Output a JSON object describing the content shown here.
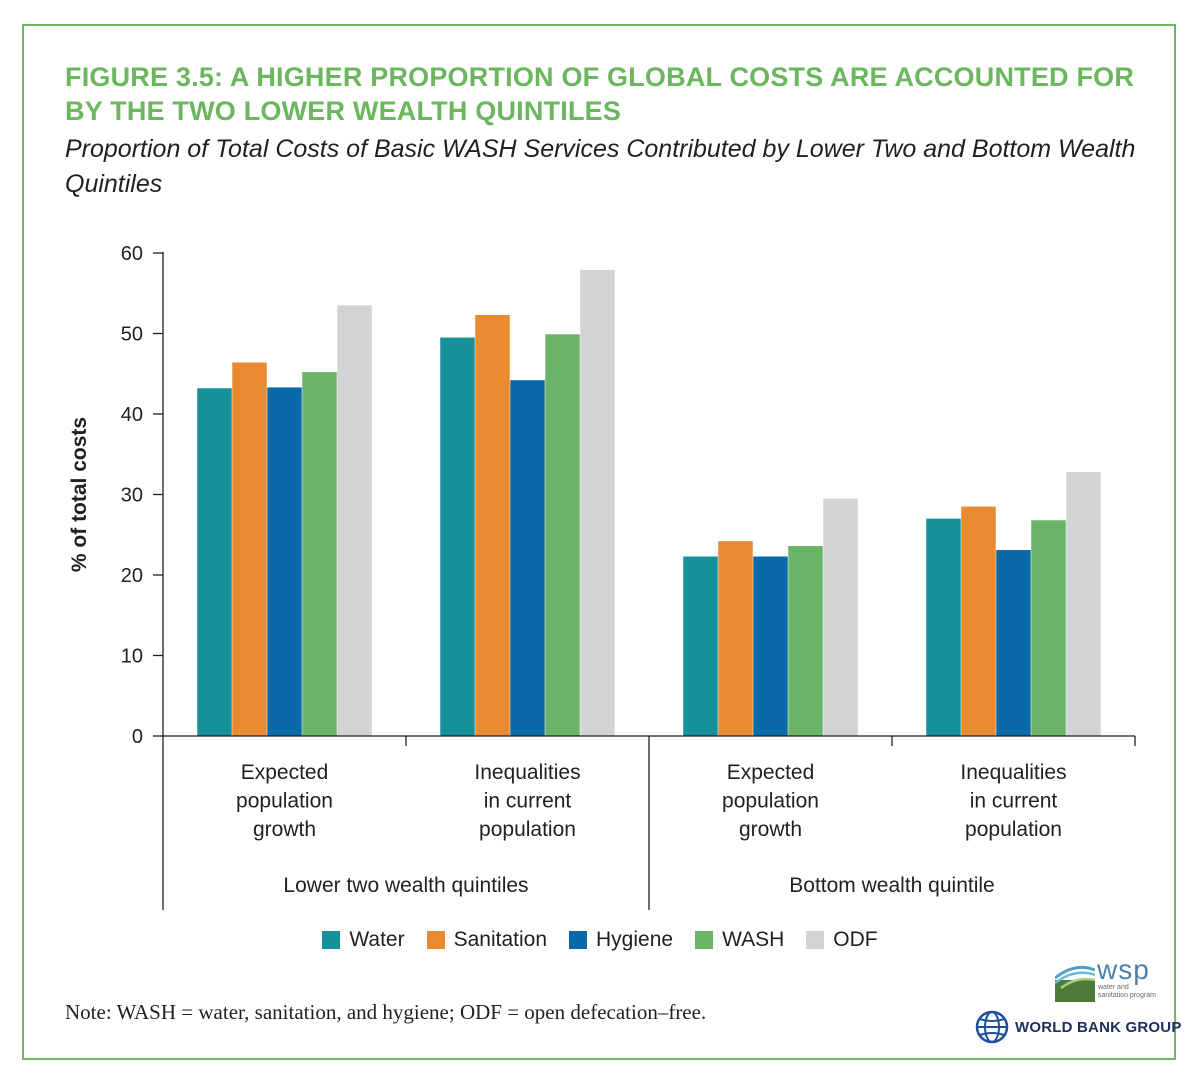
{
  "figure": {
    "title": "FIGURE 3.5: A HIGHER PROPORTION OF GLOBAL COSTS ARE ACCOUNTED FOR BY THE TWO LOWER WEALTH QUINTILES",
    "subtitle": "Proportion of Total Costs of Basic WASH Services Contributed by Lower Two and Bottom Wealth Quintiles",
    "note": "Note: WASH = water, sanitation, and hygiene; ODF = open defecation–free."
  },
  "logos": {
    "wsp_name": "wsp",
    "wsp_tagline": "water and sanitation program",
    "wbg_name": "WORLD BANK GROUP"
  },
  "chart_data": {
    "type": "bar",
    "title": "Proportion of Total Costs of Basic WASH Services Contributed by Lower Two and Bottom Wealth Quintiles",
    "xlabel": "",
    "ylabel": "% of total costs",
    "ylim": [
      0,
      60
    ],
    "yticks": [
      0,
      10,
      20,
      30,
      40,
      50,
      60
    ],
    "grid": false,
    "legend_position": "bottom",
    "categories": [
      [
        "Expected",
        "population",
        "growth"
      ],
      [
        "Inequalities",
        "in current",
        "population"
      ],
      [
        "Expected",
        "population",
        "growth"
      ],
      [
        "Inequalities",
        "in current",
        "population"
      ]
    ],
    "groups": [
      {
        "label": "Lower two wealth quintiles",
        "categories": [
          0,
          1
        ]
      },
      {
        "label": "Bottom wealth quintile",
        "categories": [
          2,
          3
        ]
      }
    ],
    "series": [
      {
        "name": "Water",
        "color": "#14919b",
        "values": [
          43.2,
          49.5,
          22.3,
          27.0
        ]
      },
      {
        "name": "Sanitation",
        "color": "#e98a31",
        "values": [
          46.4,
          52.3,
          24.2,
          28.5
        ]
      },
      {
        "name": "Hygiene",
        "color": "#0a6aa9",
        "values": [
          43.3,
          44.2,
          22.3,
          23.1
        ]
      },
      {
        "name": "WASH",
        "color": "#6ab467",
        "values": [
          45.2,
          49.9,
          23.6,
          26.8
        ]
      },
      {
        "name": "ODF",
        "color": "#d1d3d4",
        "values": [
          53.5,
          57.9,
          29.5,
          32.8
        ]
      }
    ]
  }
}
